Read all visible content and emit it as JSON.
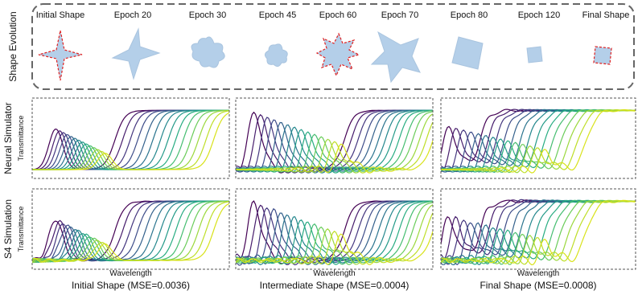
{
  "shape_evolution": {
    "label": "Shape Evolution",
    "epochs": [
      "Initial Shape",
      "Epoch 20",
      "Epoch 30",
      "Epoch 45",
      "Epoch 60",
      "Epoch 70",
      "Epoch 80",
      "Epoch 120",
      "Final Shape"
    ]
  },
  "rows": [
    {
      "label": "Neural Simulator",
      "axis": "Transmittance"
    },
    {
      "label": "S4 Simulation",
      "axis": "Transmittance"
    }
  ],
  "x_label": "Wavelength",
  "captions": [
    "Initial Shape (MSE=0.0036)",
    "Intermediate Shape (MSE=0.0004)",
    "Final Shape (MSE=0.0008)"
  ]
}
